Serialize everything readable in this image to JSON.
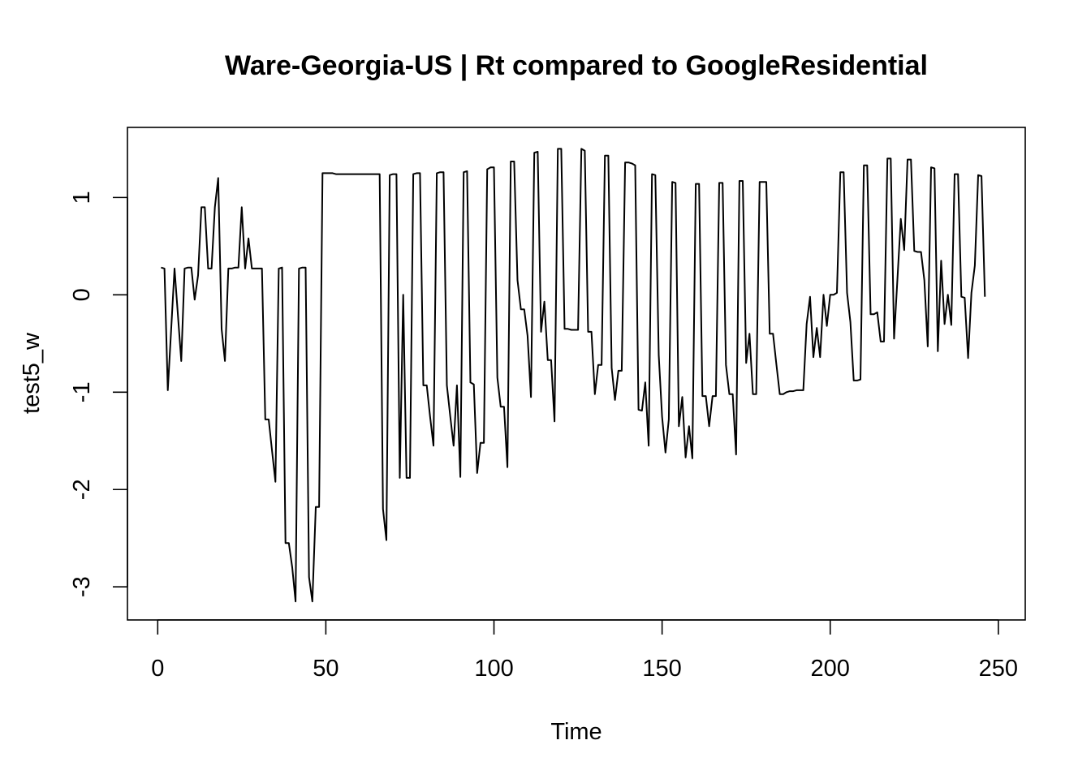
{
  "chart_data": {
    "type": "line",
    "title": "Ware-Georgia-US | Rt compared to GoogleResidential",
    "xlabel": "Time",
    "ylabel": "test5_w",
    "xlim": [
      -9,
      258
    ],
    "ylim": [
      -3.34,
      1.72
    ],
    "x_ticks": [
      0,
      50,
      100,
      150,
      200,
      250
    ],
    "y_ticks": [
      -3,
      -2,
      -1,
      0,
      1
    ],
    "x_tick_labels": [
      "0",
      "50",
      "100",
      "150",
      "200",
      "250"
    ],
    "y_tick_labels": [
      "-3",
      "-2",
      "-1",
      "0",
      "1"
    ],
    "grid": false,
    "legend": "none",
    "line_color": "#000000",
    "series": [
      {
        "x_start": 1,
        "values": [
          0.28,
          0.27,
          -0.98,
          -0.35,
          0.27,
          -0.2,
          -0.68,
          0.27,
          0.28,
          0.28,
          -0.05,
          0.2,
          0.9,
          0.9,
          0.27,
          0.27,
          0.9,
          1.2,
          -0.35,
          -0.68,
          0.27,
          0.27,
          0.28,
          0.28,
          0.9,
          0.27,
          0.58,
          0.27,
          0.27,
          0.27,
          0.27,
          -1.28,
          -1.28,
          -1.6,
          -1.92,
          0.27,
          0.28,
          -2.55,
          -2.55,
          -2.8,
          -3.15,
          0.27,
          0.28,
          0.28,
          -2.9,
          -3.15,
          -2.18,
          -2.18,
          1.25,
          1.25,
          1.25,
          1.25,
          1.24,
          1.24,
          1.24,
          1.24,
          1.24,
          1.24,
          1.24,
          1.24,
          1.24,
          1.24,
          1.24,
          1.24,
          1.24,
          1.24,
          -2.2,
          -2.52,
          1.23,
          1.24,
          1.24,
          -1.88,
          0.0,
          -1.88,
          -1.88,
          1.24,
          1.25,
          1.25,
          -0.93,
          -0.93,
          -1.25,
          -1.55,
          1.25,
          1.26,
          1.26,
          -0.93,
          -1.25,
          -1.55,
          -0.93,
          -1.87,
          1.26,
          1.27,
          -0.9,
          -0.92,
          -1.83,
          -1.52,
          -1.52,
          1.29,
          1.31,
          1.31,
          -0.85,
          -1.15,
          -1.15,
          -1.77,
          1.37,
          1.37,
          0.15,
          -0.15,
          -0.15,
          -0.42,
          -1.05,
          1.46,
          1.47,
          -0.38,
          -0.07,
          -0.67,
          -0.67,
          -1.3,
          1.5,
          1.5,
          -0.35,
          -0.35,
          -0.36,
          -0.36,
          -0.36,
          1.5,
          1.48,
          -0.38,
          -0.38,
          -1.02,
          -0.72,
          -0.72,
          1.43,
          1.43,
          -0.75,
          -1.08,
          -0.78,
          -0.78,
          1.36,
          1.36,
          1.35,
          1.33,
          -1.18,
          -1.19,
          -0.9,
          -1.55,
          1.24,
          1.23,
          -0.62,
          -1.25,
          -1.62,
          -1.28,
          1.16,
          1.15,
          -1.35,
          -1.05,
          -1.67,
          -1.35,
          -1.68,
          1.14,
          1.14,
          -1.04,
          -1.04,
          -1.35,
          -1.04,
          -1.04,
          1.15,
          1.15,
          -0.72,
          -1.02,
          -1.02,
          -1.64,
          1.17,
          1.17,
          -0.7,
          -0.4,
          -1.02,
          -1.02,
          1.16,
          1.16,
          1.16,
          -0.4,
          -0.4,
          -0.72,
          -1.02,
          -1.02,
          -1.0,
          -0.99,
          -0.99,
          -0.98,
          -0.98,
          -0.98,
          -0.3,
          -0.02,
          -0.64,
          -0.34,
          -0.64,
          0.0,
          -0.32,
          0.0,
          0.0,
          0.02,
          1.26,
          1.26,
          0.02,
          -0.28,
          -0.88,
          -0.88,
          -0.87,
          1.33,
          1.33,
          -0.2,
          -0.2,
          -0.18,
          -0.48,
          -0.48,
          1.4,
          1.4,
          -0.45,
          0.17,
          0.78,
          0.46,
          1.39,
          1.39,
          0.45,
          0.44,
          0.44,
          0.15,
          -0.53,
          1.31,
          1.3,
          -0.58,
          0.35,
          -0.3,
          0.0,
          -0.31,
          1.24,
          1.24,
          -0.02,
          -0.03,
          -0.65,
          0.02,
          0.3,
          1.23,
          1.22,
          -0.02
        ]
      }
    ]
  }
}
